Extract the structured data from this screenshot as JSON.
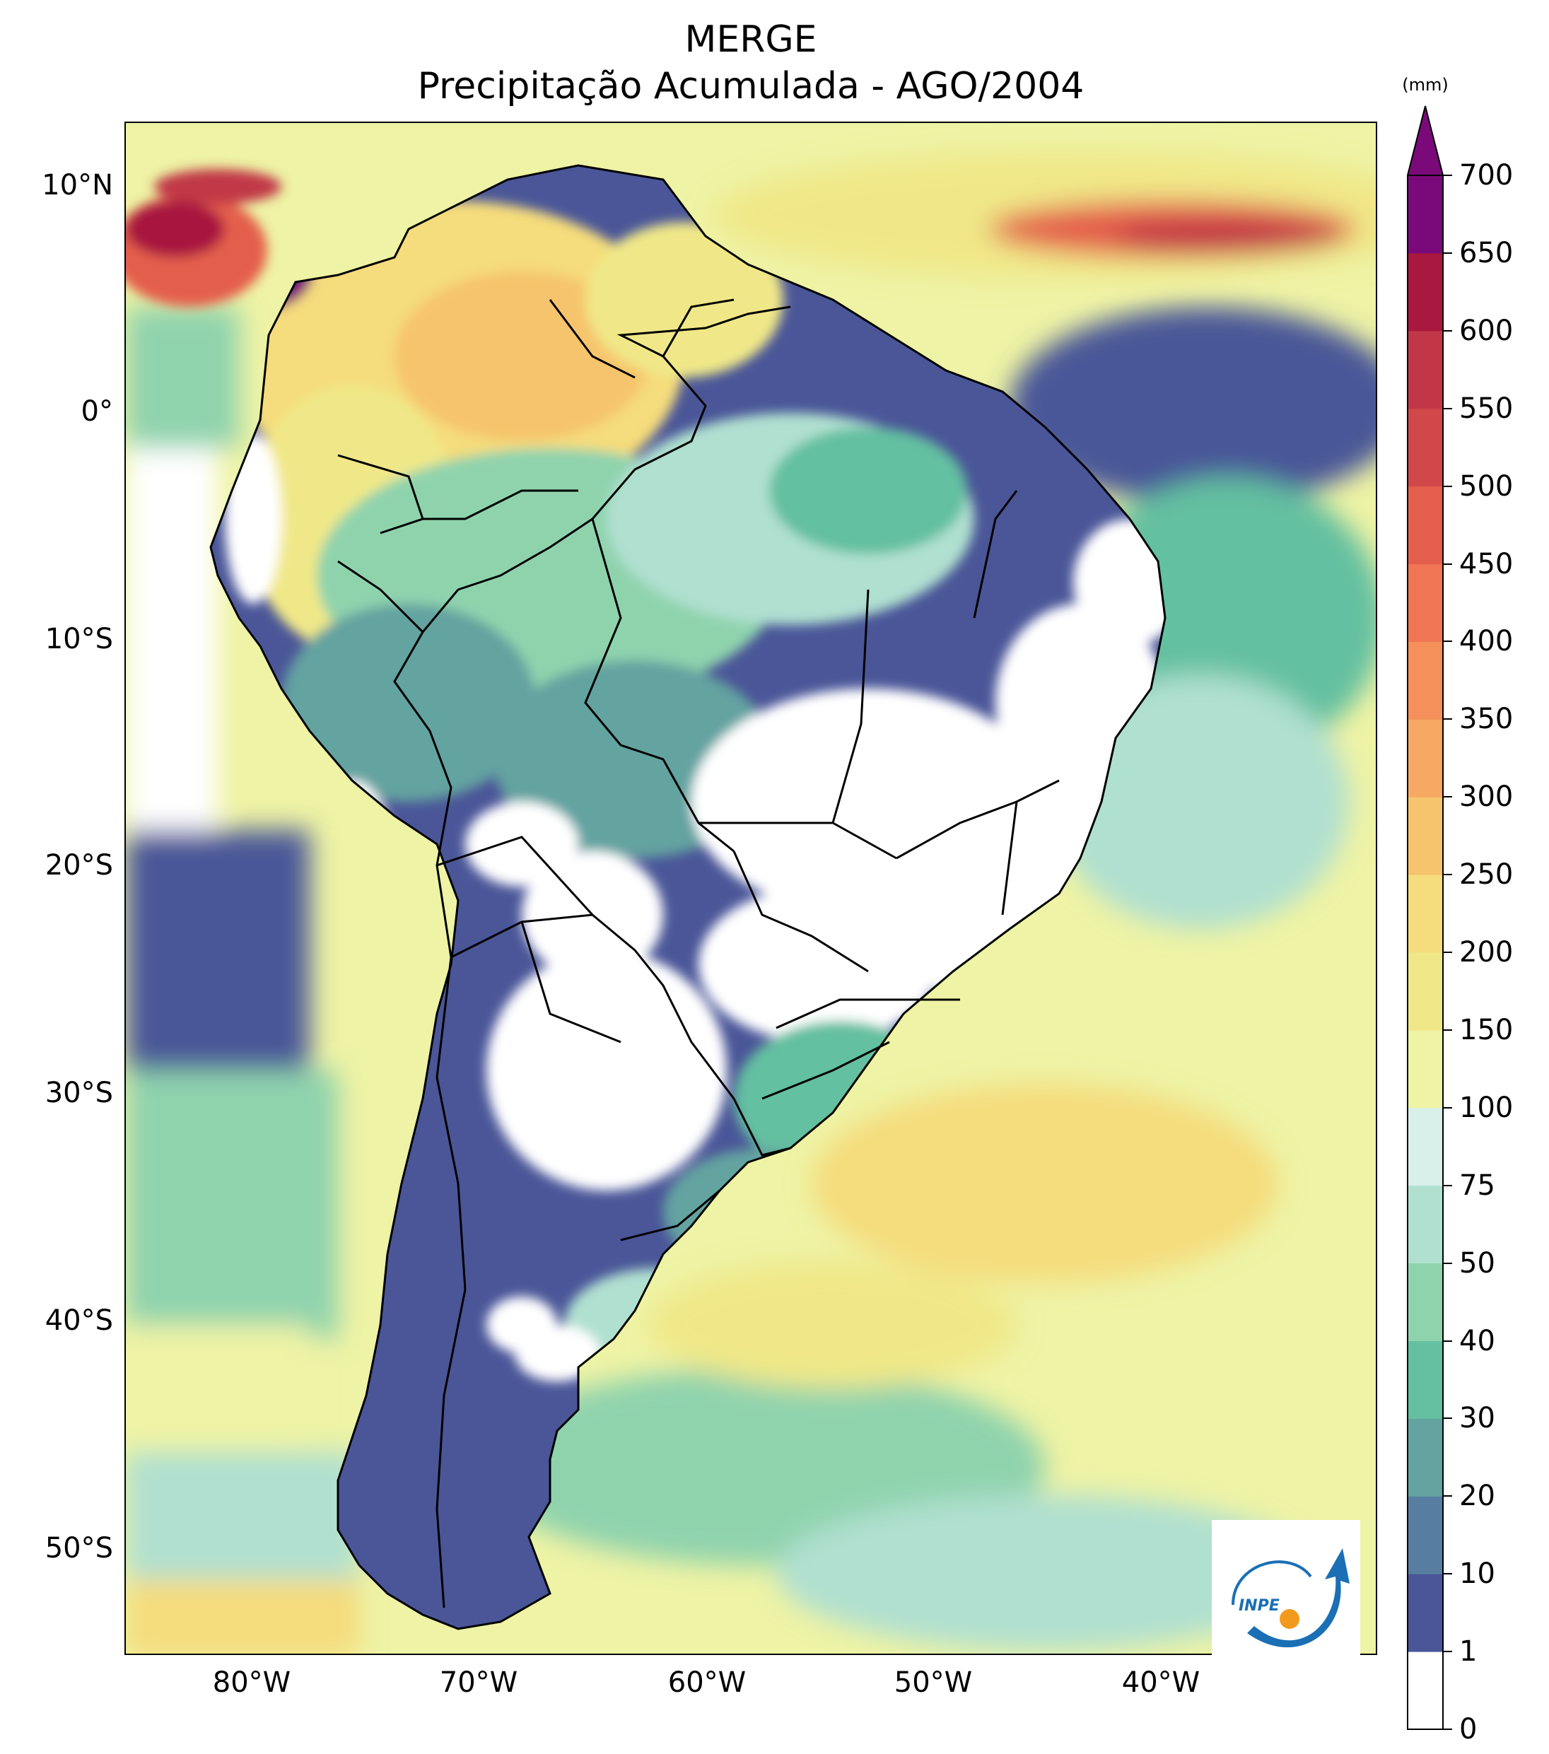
{
  "title": {
    "line1": "MERGE",
    "line2": "Precipitação Acumulada - AGO/2004"
  },
  "axes": {
    "lat_ticks": [
      "10°N",
      "0°",
      "10°S",
      "20°S",
      "30°S",
      "40°S",
      "50°S"
    ],
    "lon_ticks": [
      "80°W",
      "70°W",
      "60°W",
      "50°W",
      "40°W"
    ]
  },
  "colorbar": {
    "unit": "(mm)",
    "levels": [
      "0",
      "1",
      "10",
      "20",
      "30",
      "40",
      "50",
      "75",
      "100",
      "150",
      "200",
      "250",
      "300",
      "350",
      "400",
      "450",
      "500",
      "550",
      "600",
      "650",
      "700"
    ],
    "colors": [
      "#ffffff",
      "#4a5698",
      "#577ea0",
      "#63a3a0",
      "#64c0a0",
      "#8fd3ad",
      "#b0e0d0",
      "#d8efea",
      "#eef3a5",
      "#f0e888",
      "#f5dc7c",
      "#f6c46c",
      "#f7a862",
      "#f6905a",
      "#ef7554",
      "#e45e4c",
      "#d0484a",
      "#c13747",
      "#a8183f",
      "#7a0a7a"
    ],
    "extend_color": "#7a0a7a"
  },
  "logo": {
    "text": "INPE",
    "colors": {
      "blue": "#1a6fb5",
      "orange": "#f29a1d"
    }
  },
  "colors": {
    "ocean_base": "#eef3a5",
    "land_base": "#4a5698",
    "border": "#000000"
  }
}
